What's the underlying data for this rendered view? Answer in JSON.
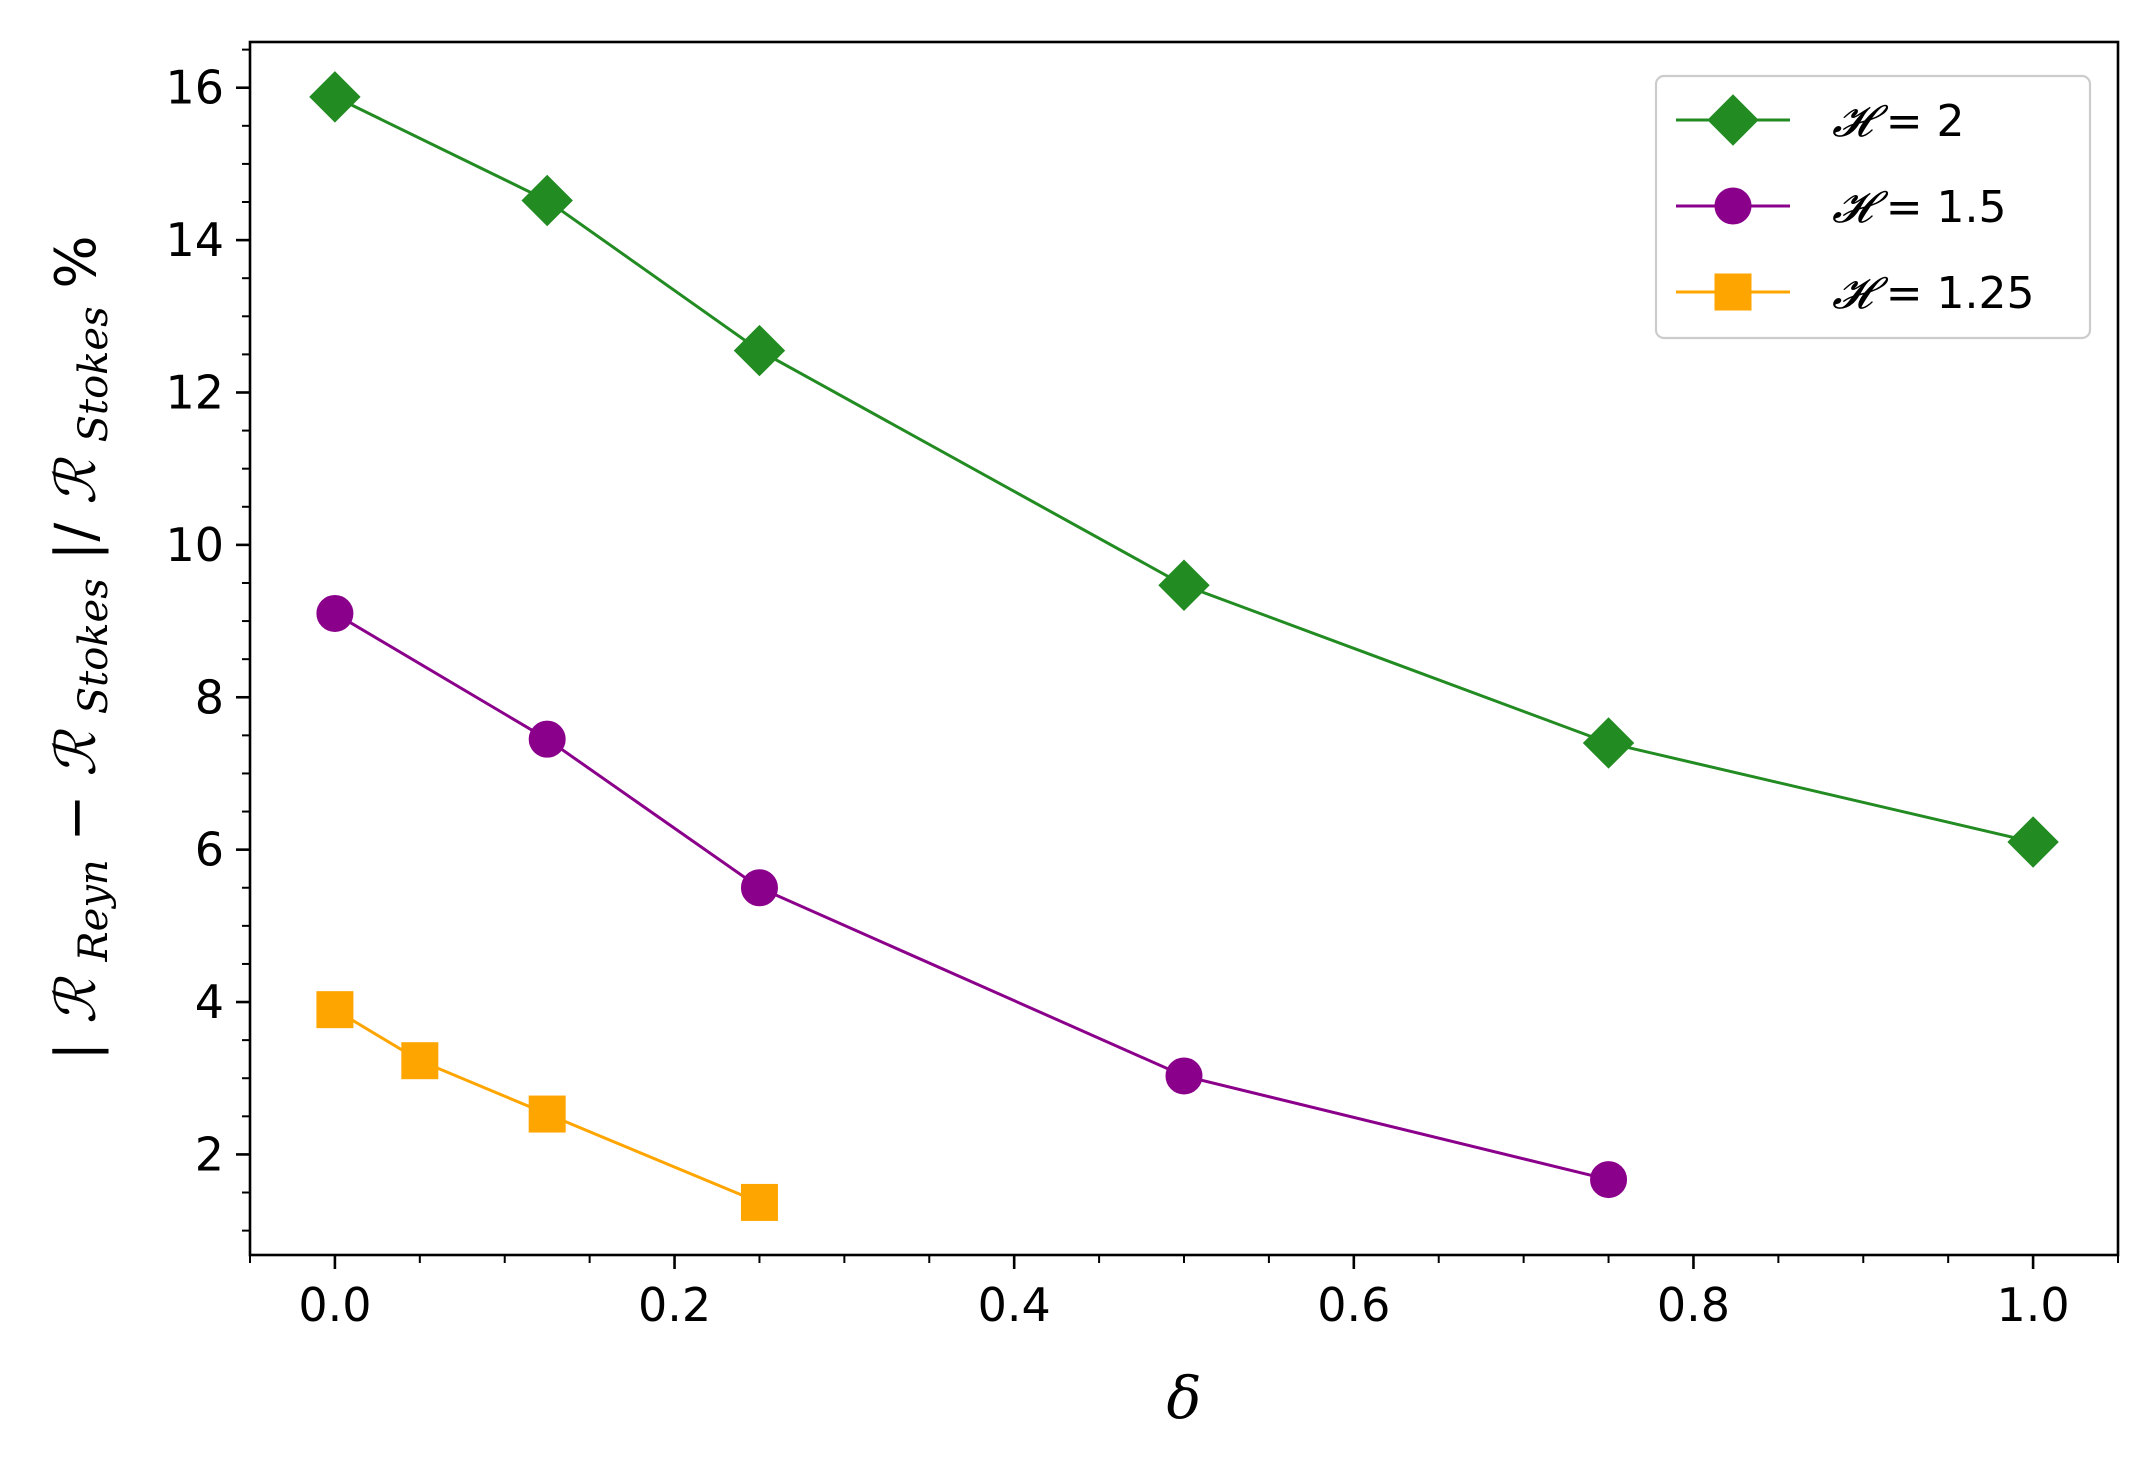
{
  "chart_data": {
    "type": "line",
    "title": "",
    "xlabel": "δ",
    "ylabel": {
      "abs_open": "|",
      "r1": "ℛ",
      "r1_sub": "Reyn",
      "minus": " − ",
      "r2": "ℛ",
      "r2_sub": "Stokes",
      "abs_close": "|/",
      "r3": "ℛ",
      "r3_sub": "Stokes",
      "percent": "%"
    },
    "xlim": [
      -0.05,
      1.05
    ],
    "ylim": [
      0.68,
      16.6
    ],
    "x_ticks": [
      0.0,
      0.2,
      0.4,
      0.6,
      0.8,
      1.0
    ],
    "x_tick_labels": [
      "0.0",
      "0.2",
      "0.4",
      "0.6",
      "0.8",
      "1.0"
    ],
    "x_minor_step": 0.05,
    "y_ticks": [
      2,
      4,
      6,
      8,
      10,
      12,
      14,
      16
    ],
    "y_tick_labels": [
      "2",
      "4",
      "6",
      "8",
      "10",
      "12",
      "14",
      "16"
    ],
    "y_minor_step": 0.5,
    "grid": false,
    "legend_position": "top-right",
    "series": [
      {
        "name": "𝓗 = 2",
        "name_symbol": "𝓗",
        "name_rest": " = 2",
        "color": "#228B22",
        "marker": "diamond",
        "x": [
          0.0,
          0.125,
          0.25,
          0.5,
          0.75,
          1.0
        ],
        "y": [
          15.88,
          14.52,
          12.55,
          9.47,
          7.4,
          6.1
        ]
      },
      {
        "name": "𝓗 = 1.5",
        "name_symbol": "𝓗",
        "name_rest": " = 1.5",
        "color": "#8B008B",
        "marker": "circle",
        "x": [
          0.0,
          0.125,
          0.25,
          0.5,
          0.75
        ],
        "y": [
          9.1,
          7.45,
          5.5,
          3.03,
          1.67
        ]
      },
      {
        "name": "𝓗 = 1.25",
        "name_symbol": "𝓗",
        "name_rest": " = 1.25",
        "color": "#FFA500",
        "marker": "square",
        "x": [
          0.0,
          0.05,
          0.125,
          0.25
        ],
        "y": [
          3.9,
          3.23,
          2.53,
          1.37
        ]
      }
    ]
  }
}
